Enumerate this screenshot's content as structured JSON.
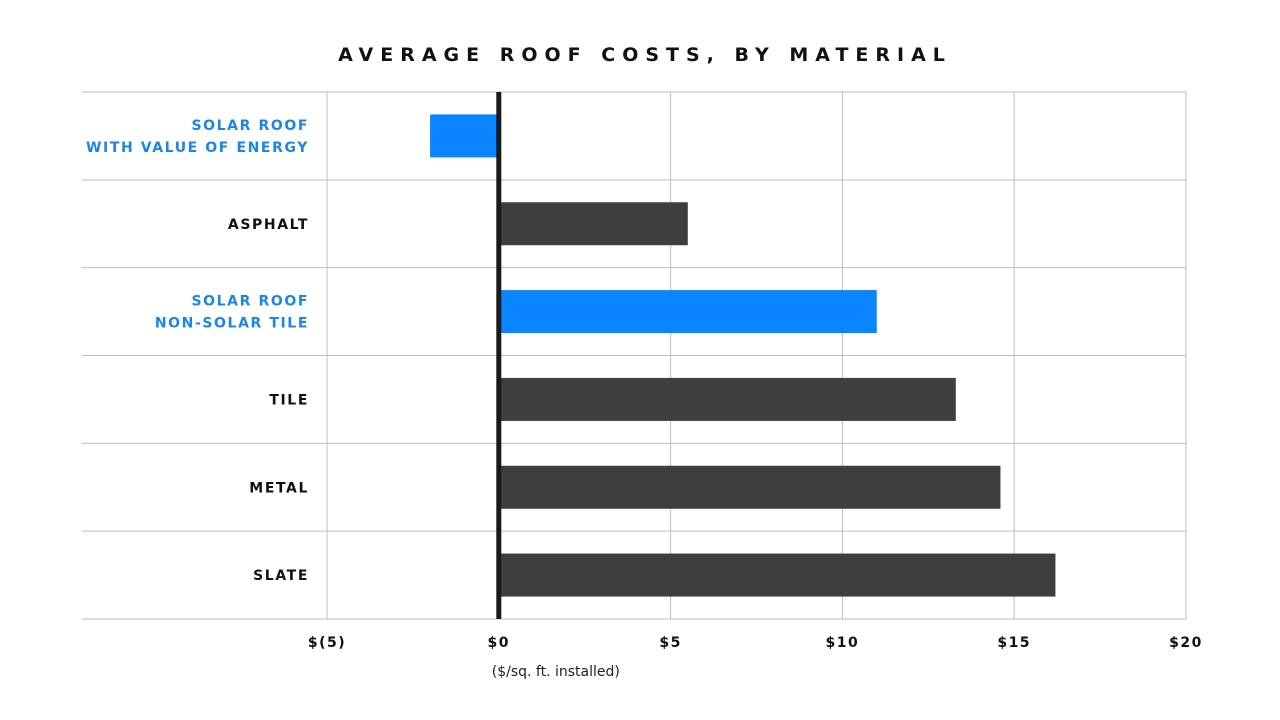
{
  "chart_data": {
    "type": "bar",
    "orientation": "horizontal",
    "title": "AVERAGE ROOF COSTS, BY MATERIAL",
    "xlabel": "($/sq. ft. installed)",
    "ylabel": "",
    "xlim": [
      -5,
      20
    ],
    "grid": true,
    "categories": [
      {
        "lines": [
          "SOLAR ROOF",
          "WITH VALUE OF ENERGY"
        ]
      },
      {
        "lines": [
          "ASPHALT"
        ]
      },
      {
        "lines": [
          "SOLAR ROOF",
          "NON-SOLAR TILE"
        ]
      },
      {
        "lines": [
          "TILE"
        ]
      },
      {
        "lines": [
          "METAL"
        ]
      },
      {
        "lines": [
          "SLATE"
        ]
      }
    ],
    "values": [
      -2.0,
      5.5,
      11.0,
      13.3,
      14.6,
      16.2
    ],
    "highlight": [
      true,
      false,
      true,
      false,
      false,
      false
    ],
    "x_ticks": [
      {
        "value": -5,
        "label": "$(5)"
      },
      {
        "value": 0,
        "label": "$0"
      },
      {
        "value": 5,
        "label": "$5"
      },
      {
        "value": 10,
        "label": "$10"
      },
      {
        "value": 15,
        "label": "$15"
      },
      {
        "value": 20,
        "label": "$20"
      }
    ],
    "colors": {
      "highlight": "#0a84ff",
      "default": "#3e3e3e",
      "highlight_label": "#1a86e8",
      "default_label": "#111111",
      "grid": "#bdbdbd",
      "zero_line": "#1a1a1a"
    }
  }
}
